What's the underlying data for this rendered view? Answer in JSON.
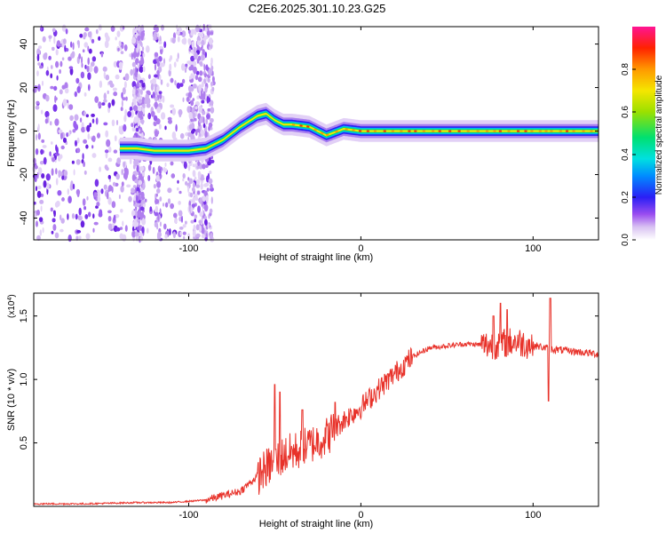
{
  "title": "C2E6.2025.301.10.23.G25",
  "chart_data": [
    {
      "type": "heatmap",
      "xlabel": "Height of straight line (km)",
      "ylabel": "Frequency (Hz)",
      "xlim": [
        -190,
        138
      ],
      "ylim": [
        -50,
        48
      ],
      "xticks": [
        -100,
        0,
        100
      ],
      "yticks": [
        -40,
        -20,
        0,
        20,
        40
      ],
      "track": [
        {
          "x": -140,
          "f": -8
        },
        {
          "x": -130,
          "f": -8
        },
        {
          "x": -120,
          "f": -9
        },
        {
          "x": -110,
          "f": -9
        },
        {
          "x": -100,
          "f": -9
        },
        {
          "x": -90,
          "f": -8
        },
        {
          "x": -80,
          "f": -4
        },
        {
          "x": -70,
          "f": 2
        },
        {
          "x": -60,
          "f": 7
        },
        {
          "x": -55,
          "f": 8
        },
        {
          "x": -50,
          "f": 5
        },
        {
          "x": -45,
          "f": 3
        },
        {
          "x": -40,
          "f": 3
        },
        {
          "x": -30,
          "f": 2
        },
        {
          "x": -20,
          "f": -2
        },
        {
          "x": -10,
          "f": 1
        },
        {
          "x": 0,
          "f": 0
        },
        {
          "x": 138,
          "f": 0
        }
      ],
      "colorbar": {
        "label": "Normalized spectral amplitude",
        "range": [
          0,
          1
        ],
        "ticks": [
          0.0,
          0.2,
          0.4,
          0.6,
          0.8
        ],
        "tick_labels": [
          "0.0",
          "0.2",
          "0.4",
          "0.6",
          "0.8"
        ]
      }
    },
    {
      "type": "line",
      "xlabel": "Height of straight line (km)",
      "ylabel": "SNR (10 * v/v)",
      "scale_label": "(x10",
      "scale_exp": "4",
      "scale_close": ")",
      "xlim": [
        -190,
        138
      ],
      "ylim": [
        0,
        1.68
      ],
      "xticks": [
        -100,
        0,
        100
      ],
      "yticks": [
        0.5,
        1.0,
        1.5
      ],
      "ytick_labels": [
        "0.5",
        "1.0",
        "1.5"
      ],
      "color": "#e8322a",
      "envelope": [
        {
          "x": -190,
          "y": 0.02
        },
        {
          "x": -160,
          "y": 0.02
        },
        {
          "x": -130,
          "y": 0.03
        },
        {
          "x": -110,
          "y": 0.03
        },
        {
          "x": -90,
          "y": 0.05
        },
        {
          "x": -70,
          "y": 0.12
        },
        {
          "x": -55,
          "y": 0.3
        },
        {
          "x": -45,
          "y": 0.4
        },
        {
          "x": -35,
          "y": 0.45
        },
        {
          "x": -20,
          "y": 0.55
        },
        {
          "x": -10,
          "y": 0.68
        },
        {
          "x": 0,
          "y": 0.78
        },
        {
          "x": 10,
          "y": 0.92
        },
        {
          "x": 20,
          "y": 1.05
        },
        {
          "x": 30,
          "y": 1.18
        },
        {
          "x": 40,
          "y": 1.25
        },
        {
          "x": 60,
          "y": 1.28
        },
        {
          "x": 75,
          "y": 1.27
        },
        {
          "x": 90,
          "y": 1.3
        },
        {
          "x": 110,
          "y": 1.24
        },
        {
          "x": 138,
          "y": 1.2
        }
      ],
      "spikes": [
        {
          "x": -50,
          "y": 0.96
        },
        {
          "x": -47,
          "y": 0.9
        },
        {
          "x": -34,
          "y": 0.76
        },
        {
          "x": -15,
          "y": 0.82
        },
        {
          "x": 77,
          "y": 1.5
        },
        {
          "x": 81,
          "y": 1.6
        },
        {
          "x": 85,
          "y": 1.55
        },
        {
          "x": 109,
          "y": 0.83
        },
        {
          "x": 110,
          "y": 1.64
        }
      ]
    }
  ]
}
